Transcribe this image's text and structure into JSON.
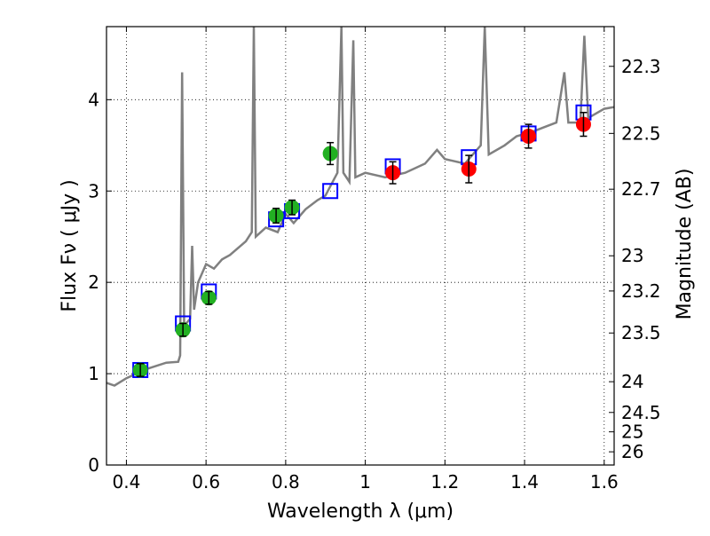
{
  "chart_data": {
    "type": "line",
    "xlabel": "Wavelength  λ (μm)",
    "ylabel": "Flux  Fν  ( μJy )",
    "y2label": "Magnitude (AB)",
    "xlim": [
      0.35,
      1.625
    ],
    "ylim": [
      0,
      4.8
    ],
    "grid": true,
    "xticks": [
      0.4,
      0.6,
      0.8,
      1.0,
      1.2,
      1.4,
      1.6
    ],
    "xtick_labels": [
      "0.4",
      "0.6",
      "0.8",
      "1",
      "1.2",
      "1.4",
      "1.6"
    ],
    "yticks": [
      0,
      1,
      2,
      3,
      4
    ],
    "ytick_labels": [
      "0",
      "1",
      "2",
      "3",
      "4"
    ],
    "y2ticks": [
      22.3,
      22.5,
      22.7,
      23,
      23.2,
      23.5,
      24,
      24.5,
      25,
      26
    ],
    "y2tick_labels": [
      "22.3",
      "22.5",
      "22.7",
      "23",
      "23.2",
      "23.5",
      "24",
      "24.5",
      "25",
      "26"
    ],
    "colors": {
      "spectrum": "#808080",
      "optical": "#22b022",
      "nir": "#ff0000",
      "model": "#0000ff"
    },
    "spectrum": {
      "x": [
        0.35,
        0.37,
        0.4,
        0.45,
        0.5,
        0.53,
        0.535,
        0.54,
        0.545,
        0.55,
        0.56,
        0.565,
        0.57,
        0.58,
        0.6,
        0.62,
        0.64,
        0.66,
        0.7,
        0.715,
        0.72,
        0.725,
        0.75,
        0.78,
        0.8,
        0.82,
        0.85,
        0.88,
        0.9,
        0.93,
        0.94,
        0.945,
        0.96,
        0.97,
        0.975,
        1.0,
        1.05,
        1.1,
        1.15,
        1.18,
        1.2,
        1.25,
        1.29,
        1.3,
        1.31,
        1.35,
        1.38,
        1.42,
        1.45,
        1.48,
        1.5,
        1.51,
        1.54,
        1.55,
        1.56,
        1.6,
        1.625
      ],
      "y": [
        0.9,
        0.87,
        0.95,
        1.05,
        1.12,
        1.13,
        1.2,
        4.3,
        1.5,
        1.55,
        1.6,
        2.4,
        1.7,
        2.0,
        2.2,
        2.15,
        2.25,
        2.3,
        2.45,
        2.55,
        4.8,
        2.5,
        2.6,
        2.55,
        2.75,
        2.65,
        2.8,
        2.9,
        2.95,
        3.2,
        4.8,
        3.2,
        3.1,
        4.65,
        3.15,
        3.2,
        3.15,
        3.2,
        3.3,
        3.45,
        3.35,
        3.3,
        3.5,
        4.8,
        3.4,
        3.5,
        3.6,
        3.65,
        3.7,
        3.75,
        4.3,
        3.75,
        3.75,
        4.7,
        3.8,
        3.9,
        3.92
      ]
    },
    "optical_points": {
      "x": [
        0.435,
        0.542,
        0.607,
        0.776,
        0.816,
        0.912
      ],
      "y": [
        1.04,
        1.48,
        1.83,
        2.73,
        2.82,
        3.41
      ],
      "err": [
        0.07,
        0.07,
        0.07,
        0.08,
        0.08,
        0.12
      ]
    },
    "nir_points": {
      "x": [
        1.069,
        1.26,
        1.41,
        1.548
      ],
      "y": [
        3.2,
        3.24,
        3.6,
        3.73
      ],
      "err": [
        0.12,
        0.15,
        0.13,
        0.13
      ]
    },
    "model_points": {
      "x": [
        0.435,
        0.542,
        0.607,
        0.776,
        0.816,
        0.912,
        1.069,
        1.26,
        1.41,
        1.548
      ],
      "y": [
        1.04,
        1.55,
        1.9,
        2.69,
        2.78,
        3.0,
        3.27,
        3.37,
        3.63,
        3.86
      ]
    }
  }
}
